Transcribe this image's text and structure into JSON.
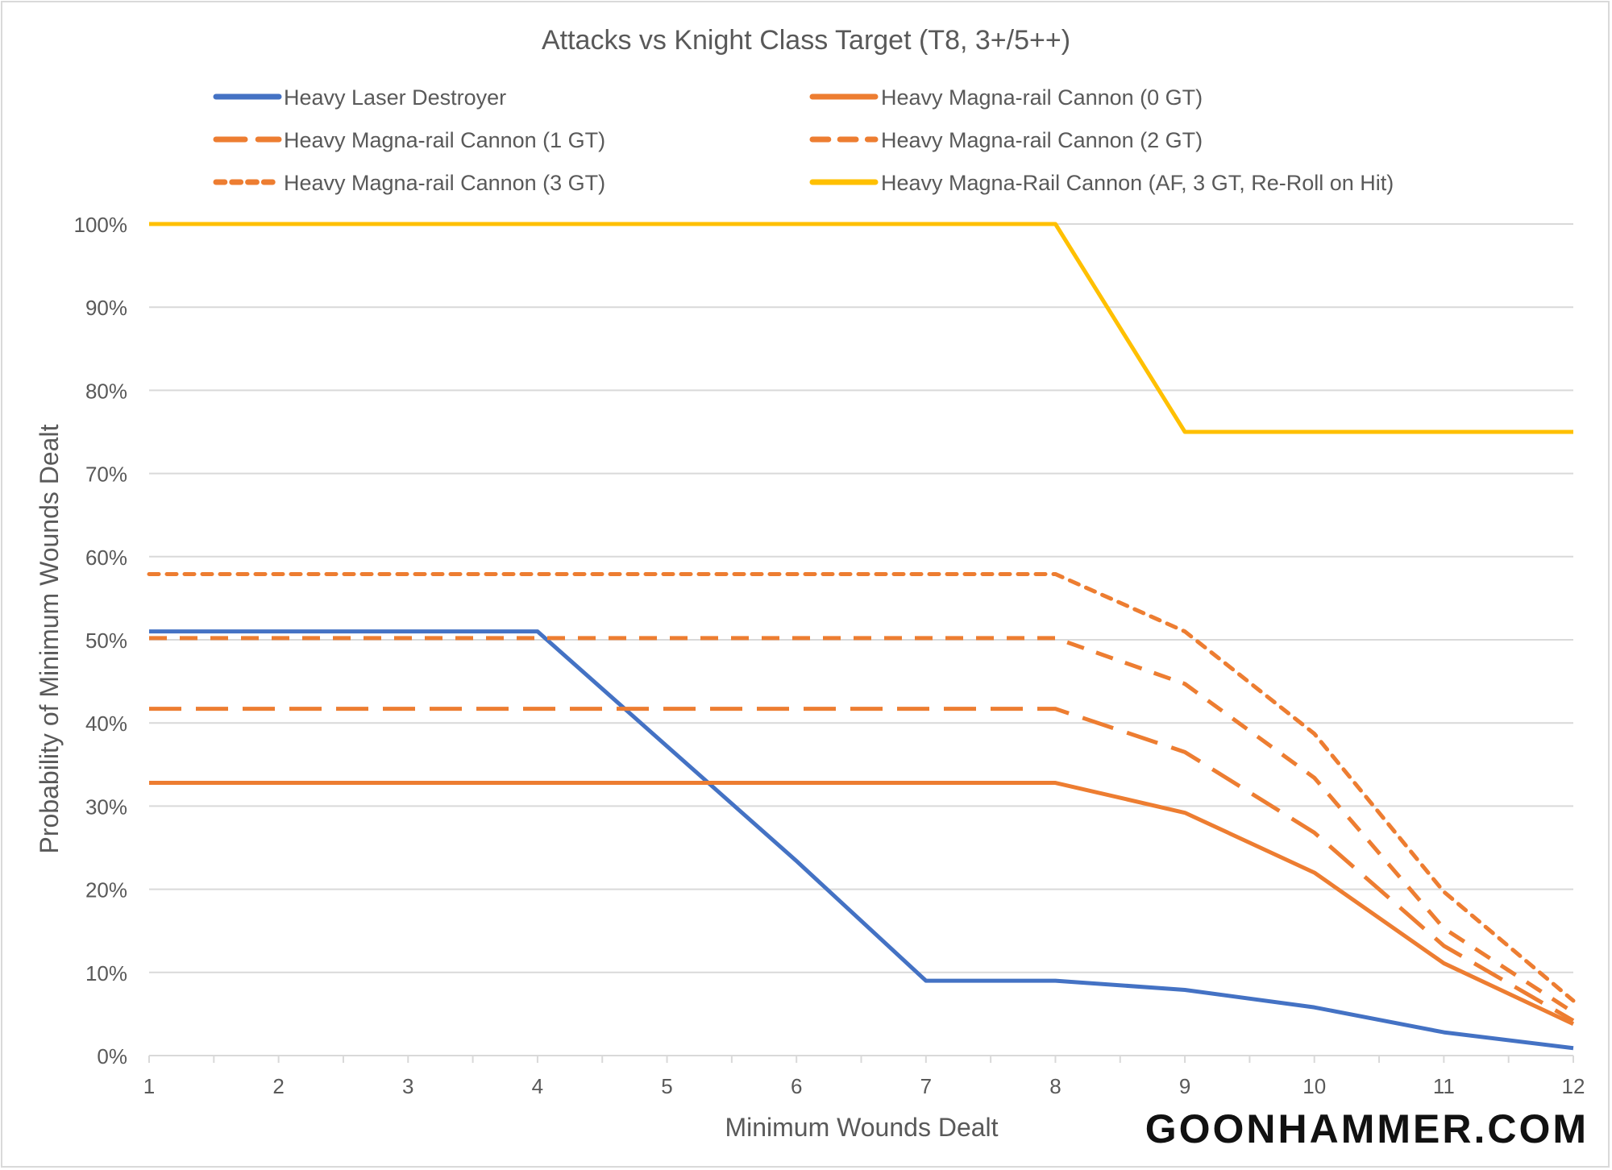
{
  "chart_data": {
    "type": "line",
    "title": "Attacks vs Knight Class Target (T8, 3+/5++)",
    "xlabel": "Minimum Wounds Dealt",
    "ylabel": "Probability of Minimum Wounds Dealt",
    "x": [
      1,
      2,
      3,
      4,
      5,
      6,
      7,
      8,
      9,
      10,
      11,
      12
    ],
    "xlim": [
      1,
      12
    ],
    "ylim": [
      0,
      100
    ],
    "yticks": [
      "0%",
      "10%",
      "20%",
      "30%",
      "40%",
      "50%",
      "60%",
      "70%",
      "80%",
      "90%",
      "100%"
    ],
    "grid": true,
    "legend_position": "top",
    "series": [
      {
        "name": "Heavy Laser Destroyer",
        "color": "#4472c4",
        "dash": "solid",
        "values": [
          51,
          51,
          51,
          51,
          37.2,
          23.4,
          9.0,
          9.0,
          7.9,
          5.8,
          2.8,
          0.9
        ]
      },
      {
        "name": "Heavy Magna-rail Cannon (0 GT)",
        "color": "#ed7d31",
        "dash": "solid",
        "values": [
          32.8,
          32.8,
          32.8,
          32.8,
          32.8,
          32.8,
          32.8,
          32.8,
          29.2,
          22.0,
          11.1,
          3.8
        ]
      },
      {
        "name": "Heavy Magna-rail Cannon (1 GT)",
        "color": "#ed7d31",
        "dash": "long-dash",
        "values": [
          41.7,
          41.7,
          41.7,
          41.7,
          41.7,
          41.7,
          41.7,
          41.7,
          36.5,
          26.8,
          13.2,
          4.2
        ]
      },
      {
        "name": "Heavy Magna-rail Cannon (2 GT)",
        "color": "#ed7d31",
        "dash": "dash",
        "values": [
          50.2,
          50.2,
          50.2,
          50.2,
          50.2,
          50.2,
          50.2,
          50.2,
          44.7,
          33.4,
          15.3,
          5.2
        ]
      },
      {
        "name": "Heavy Magna-rail Cannon (3 GT)",
        "color": "#ed7d31",
        "dash": "dot",
        "values": [
          57.9,
          57.9,
          57.9,
          57.9,
          57.9,
          57.9,
          57.9,
          57.9,
          51.0,
          38.7,
          19.7,
          6.6
        ]
      },
      {
        "name": "Heavy Magna-Rail Cannon (AF, 3 GT, Re-Roll on Hit)",
        "color": "#ffc000",
        "dash": "solid",
        "values": [
          100,
          100,
          100,
          100,
          100,
          100,
          100,
          100,
          75,
          75,
          75,
          75
        ]
      }
    ]
  },
  "watermark": "GOONHAMMER.COM"
}
